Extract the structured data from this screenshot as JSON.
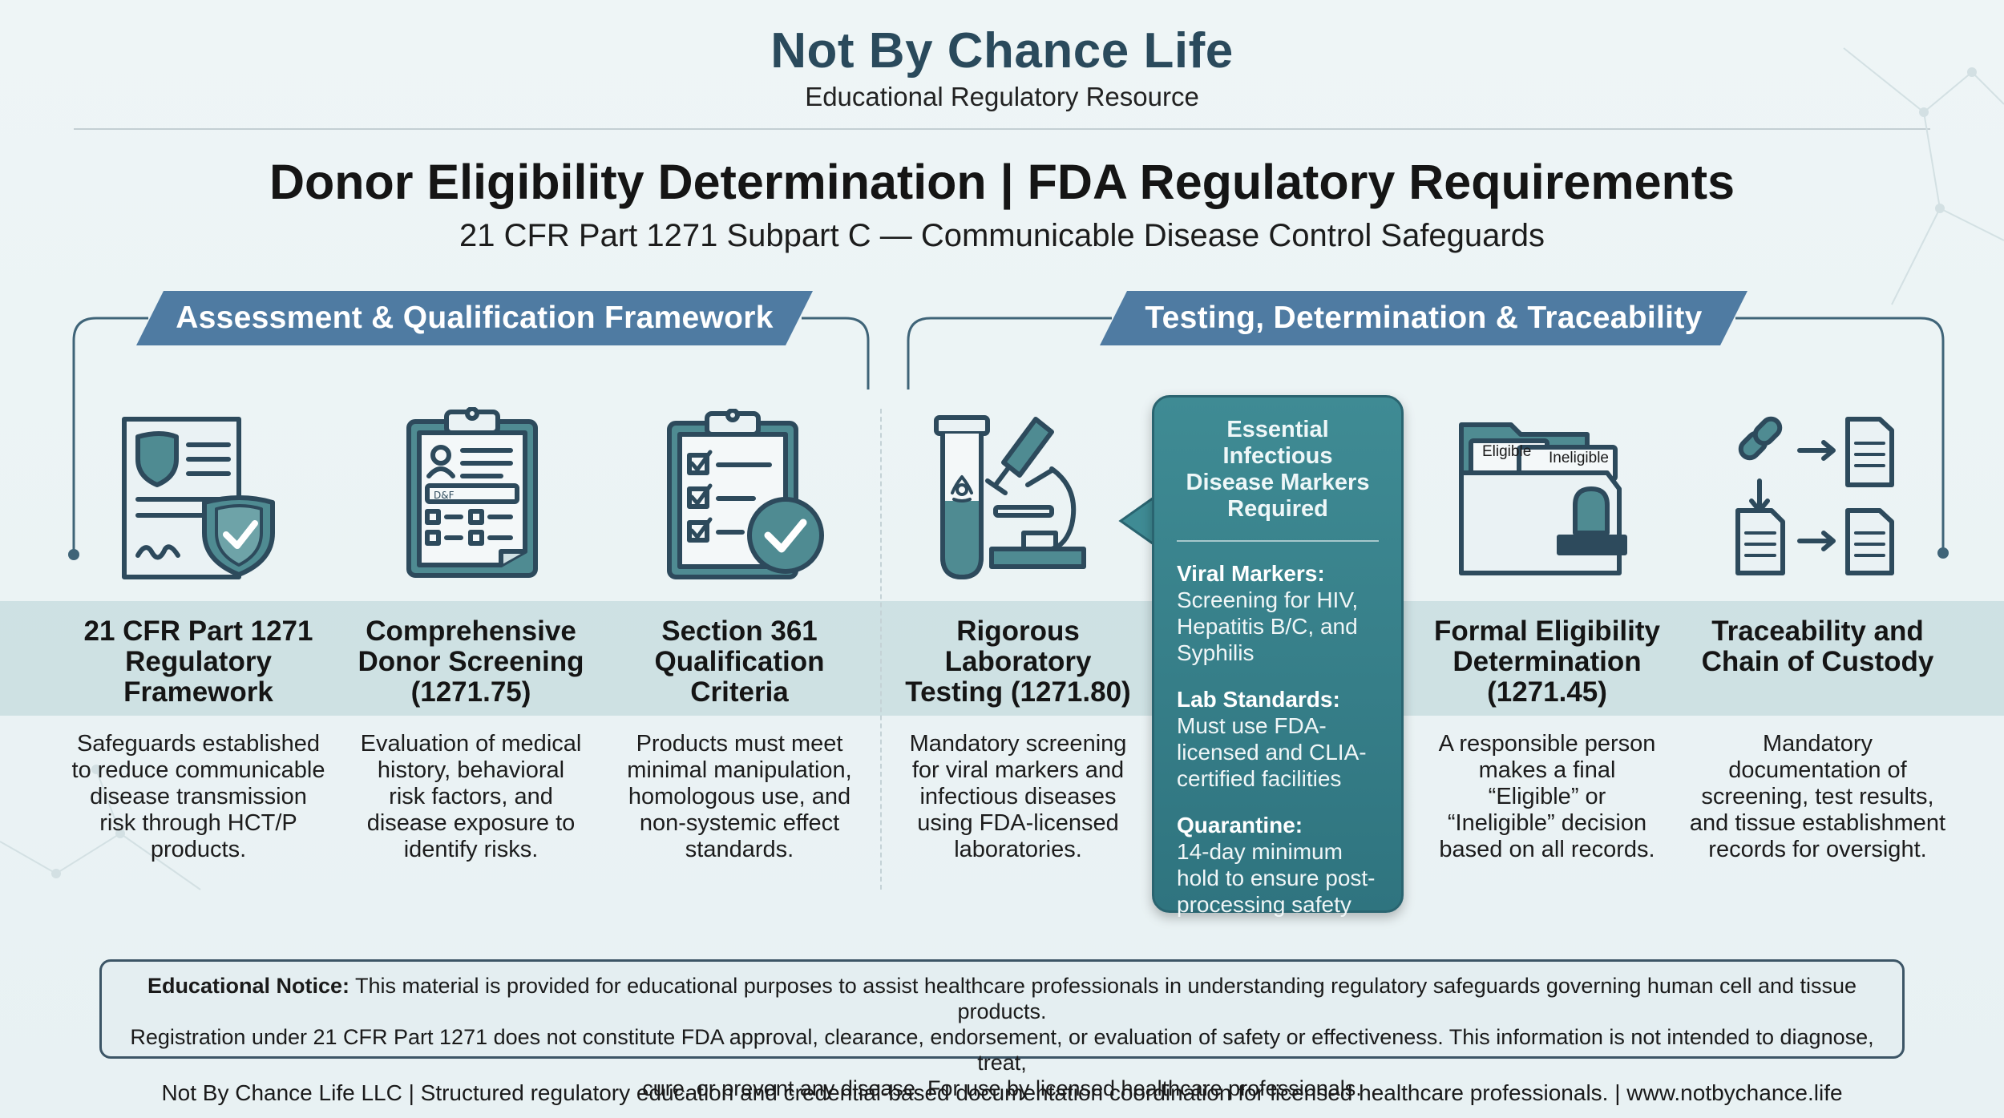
{
  "header": {
    "brand": "Not By Chance Life",
    "tagline": "Educational Regulatory Resource",
    "title": "Donor Eligibility Determination | FDA Regulatory Requirements",
    "subtitle": "21 CFR Part 1271 Subpart C — Communicable Disease Control Safeguards"
  },
  "sections": {
    "left_banner": "Assessment & Qualification Framework",
    "right_banner": "Testing, Determination & Traceability"
  },
  "columns": [
    {
      "icon": "shield-document-icon",
      "title": [
        "21 CFR Part 1271",
        "Regulatory",
        "Framework"
      ],
      "desc": [
        "Safeguards established",
        "to reduce communicable",
        "disease transmission",
        "risk through HCT/P",
        "products."
      ]
    },
    {
      "icon": "clipboard-form-icon",
      "title": [
        "Comprehensive",
        "Donor Screening",
        "(1271.75)"
      ],
      "desc": [
        "Evaluation of medical",
        "history, behavioral",
        "risk factors, and",
        "disease exposure to",
        "identify risks."
      ]
    },
    {
      "icon": "checklist-icon",
      "title": [
        "Section 361",
        "Qualification",
        "Criteria"
      ],
      "desc": [
        "Products must meet",
        "minimal manipulation,",
        "homologous use, and",
        "non-systemic effect",
        "standards."
      ]
    },
    {
      "icon": "lab-microscope-icon",
      "title": [
        "Rigorous",
        "Laboratory",
        "Testing (1271.80)"
      ],
      "desc": [
        "Mandatory screening",
        "for viral markers and",
        "infectious diseases",
        "using FDA-licensed",
        "laboratories."
      ]
    },
    {
      "icon": "folder-stamp-icon",
      "title": [
        "Formal Eligibility",
        "Determination",
        "(1271.45)"
      ],
      "desc": [
        "A responsible person",
        "makes a final",
        "“Eligible” or",
        "“Ineligible” decision",
        "based on all records."
      ]
    },
    {
      "icon": "chain-documents-icon",
      "title": [
        "Traceability and",
        "Chain of Custody"
      ],
      "desc": [
        "Mandatory",
        "documentation of",
        "screening, test results,",
        "and tissue establishment",
        "records for oversight."
      ]
    }
  ],
  "folder_tabs": {
    "eligible": "Eligible",
    "ineligible": "Ineligible"
  },
  "callout": {
    "heading": [
      "Essential Infectious",
      "Disease Markers",
      "Required"
    ],
    "items": [
      {
        "label": "Viral Markers:",
        "text": [
          "Screening for HIV,",
          "Hepatitis B/C, and",
          "Syphilis"
        ]
      },
      {
        "label": "Lab Standards:",
        "text": [
          "Must use FDA-",
          "licensed and CLIA-",
          "certified facilities"
        ]
      },
      {
        "label": "Quarantine:",
        "text": [
          "14-day minimum",
          "hold to ensure post-",
          "processing safety"
        ]
      }
    ]
  },
  "notice": {
    "label": "Educational Notice:",
    "lines": [
      "This material is provided for educational purposes to assist healthcare professionals in understanding regulatory safeguards governing human cell and tissue products.",
      "Registration under 21 CFR Part 1271 does not constitute FDA approval, clearance, endorsement, or evaluation of safety or effectiveness. This information is not intended to diagnose, treat,",
      "cure, or prevent any disease. For use by licensed healthcare professionals."
    ]
  },
  "footer": "Not By Chance Life LLC | Structured regulatory education and credential-based documentation coordination for licensed healthcare professionals. | www.notbychance.life",
  "colors": {
    "accent": "#4f7ba2",
    "callout": "#3a8089",
    "icon_stroke": "#2d4a5c",
    "icon_fill": "#4f8b92"
  }
}
